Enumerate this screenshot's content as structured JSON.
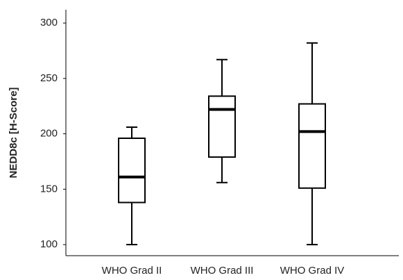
{
  "chart_data": {
    "type": "box",
    "ylabel": "NEDD8c [H-Score]",
    "categories": [
      "WHO Grad II",
      "WHO Grad III",
      "WHO Grad IV"
    ],
    "boxes": [
      {
        "min": 100,
        "q1": 138,
        "median": 161,
        "q3": 196,
        "max": 206
      },
      {
        "min": 156,
        "q1": 179,
        "median": 222,
        "q3": 234,
        "max": 267
      },
      {
        "min": 100,
        "q1": 151,
        "median": 202,
        "q3": 227,
        "max": 282
      }
    ],
    "color": "#000000",
    "ylim": [
      90,
      312
    ],
    "yticks": [
      100,
      150,
      200,
      250,
      300
    ],
    "grid": false
  }
}
